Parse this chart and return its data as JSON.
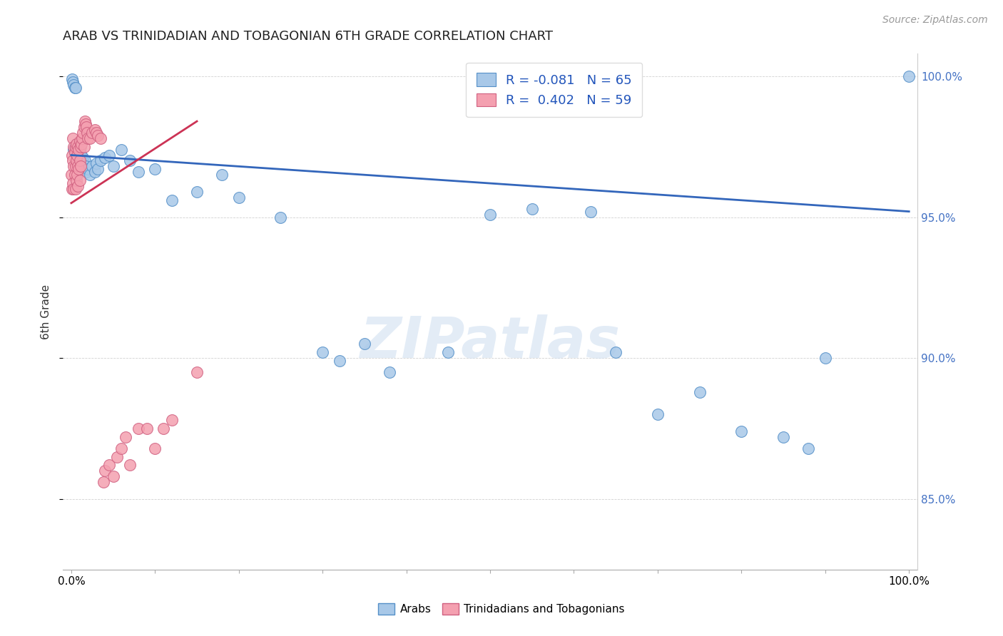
{
  "title": "ARAB VS TRINIDADIAN AND TOBAGONIAN 6TH GRADE CORRELATION CHART",
  "source": "Source: ZipAtlas.com",
  "ylabel": "6th Grade",
  "watermark": "ZIPatlas",
  "legend_entries": [
    "Arabs",
    "Trinidadians and Tobagonians"
  ],
  "blue_r": "-0.081",
  "blue_n": "65",
  "pink_r": "0.402",
  "pink_n": "59",
  "blue_color": "#a8c8e8",
  "pink_color": "#f4a0b0",
  "blue_edge_color": "#5590c8",
  "pink_edge_color": "#d06080",
  "blue_line_color": "#3366bb",
  "pink_line_color": "#cc3355",
  "xlim": [
    0.0,
    1.0
  ],
  "ylim": [
    0.825,
    1.008
  ],
  "blue_x": [
    0.001,
    0.002,
    0.003,
    0.003,
    0.004,
    0.004,
    0.005,
    0.005,
    0.005,
    0.006,
    0.006,
    0.006,
    0.007,
    0.007,
    0.008,
    0.008,
    0.008,
    0.009,
    0.009,
    0.01,
    0.01,
    0.01,
    0.011,
    0.012,
    0.013,
    0.014,
    0.015,
    0.016,
    0.017,
    0.018,
    0.02,
    0.022,
    0.025,
    0.028,
    0.03,
    0.032,
    0.035,
    0.04,
    0.045,
    0.05,
    0.06,
    0.07,
    0.08,
    0.1,
    0.12,
    0.15,
    0.18,
    0.2,
    0.25,
    0.3,
    0.32,
    0.35,
    0.38,
    0.45,
    0.5,
    0.55,
    0.62,
    0.65,
    0.7,
    0.75,
    0.8,
    0.85,
    0.88,
    0.9,
    1.0
  ],
  "blue_y": [
    0.999,
    0.998,
    0.997,
    0.974,
    0.996,
    0.975,
    0.996,
    0.975,
    0.974,
    0.976,
    0.975,
    0.974,
    0.975,
    0.974,
    0.975,
    0.974,
    0.972,
    0.973,
    0.971,
    0.975,
    0.974,
    0.97,
    0.971,
    0.972,
    0.97,
    0.971,
    0.969,
    0.97,
    0.968,
    0.966,
    0.967,
    0.965,
    0.968,
    0.966,
    0.969,
    0.967,
    0.97,
    0.971,
    0.972,
    0.968,
    0.974,
    0.97,
    0.966,
    0.967,
    0.956,
    0.959,
    0.965,
    0.957,
    0.95,
    0.902,
    0.899,
    0.905,
    0.895,
    0.902,
    0.951,
    0.953,
    0.952,
    0.902,
    0.88,
    0.888,
    0.874,
    0.872,
    0.868,
    0.9,
    1.0
  ],
  "pink_x": [
    0.0,
    0.001,
    0.001,
    0.002,
    0.002,
    0.002,
    0.003,
    0.003,
    0.003,
    0.004,
    0.004,
    0.005,
    0.005,
    0.005,
    0.006,
    0.006,
    0.006,
    0.007,
    0.007,
    0.008,
    0.008,
    0.008,
    0.009,
    0.009,
    0.01,
    0.01,
    0.01,
    0.011,
    0.011,
    0.012,
    0.013,
    0.014,
    0.015,
    0.015,
    0.016,
    0.017,
    0.018,
    0.019,
    0.02,
    0.022,
    0.025,
    0.028,
    0.03,
    0.032,
    0.035,
    0.038,
    0.04,
    0.045,
    0.05,
    0.055,
    0.06,
    0.065,
    0.07,
    0.08,
    0.09,
    0.1,
    0.11,
    0.12,
    0.15
  ],
  "pink_y": [
    0.965,
    0.972,
    0.96,
    0.978,
    0.97,
    0.962,
    0.975,
    0.968,
    0.96,
    0.973,
    0.965,
    0.975,
    0.968,
    0.96,
    0.976,
    0.97,
    0.963,
    0.972,
    0.965,
    0.975,
    0.968,
    0.961,
    0.974,
    0.967,
    0.977,
    0.97,
    0.963,
    0.975,
    0.968,
    0.976,
    0.978,
    0.98,
    0.982,
    0.975,
    0.984,
    0.983,
    0.982,
    0.98,
    0.978,
    0.978,
    0.98,
    0.981,
    0.98,
    0.979,
    0.978,
    0.856,
    0.86,
    0.862,
    0.858,
    0.865,
    0.868,
    0.872,
    0.862,
    0.875,
    0.875,
    0.868,
    0.875,
    0.878,
    0.895
  ],
  "blue_trendline_x": [
    0.0,
    1.0
  ],
  "blue_trendline_y": [
    0.972,
    0.952
  ],
  "pink_trendline_x": [
    0.0,
    0.15
  ],
  "pink_trendline_y": [
    0.955,
    0.984
  ]
}
